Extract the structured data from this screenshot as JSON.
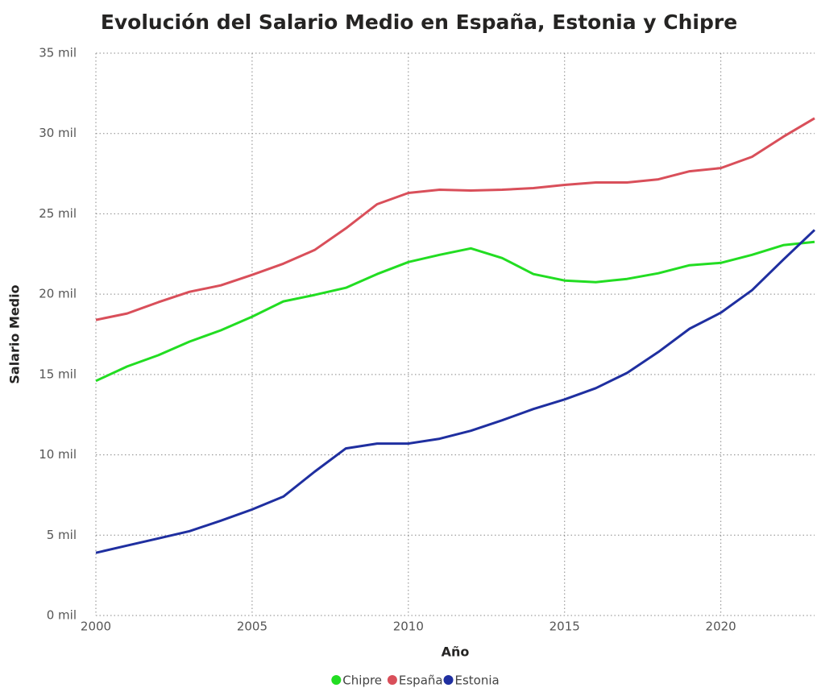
{
  "chart_data": {
    "type": "line",
    "title": "Evolución del Salario Medio en España, Estonia y Chipre",
    "x_label": "Año",
    "y_label": "Salario Medio",
    "x": [
      2000,
      2001,
      2002,
      2003,
      2004,
      2005,
      2006,
      2007,
      2008,
      2009,
      2010,
      2011,
      2012,
      2013,
      2014,
      2015,
      2016,
      2017,
      2018,
      2019,
      2020,
      2021,
      2022,
      2023
    ],
    "series": [
      {
        "name": "Chipre",
        "color": "#22dd22",
        "values": [
          14600,
          15500,
          16200,
          17050,
          17750,
          18600,
          19550,
          19950,
          20400,
          21250,
          22000,
          22450,
          22850,
          22250,
          21250,
          20850,
          20750,
          20950,
          21300,
          21800,
          21950,
          22450,
          23050,
          23250
        ]
      },
      {
        "name": "España",
        "color": "#d94f5a",
        "values": [
          18400,
          18800,
          19500,
          20150,
          20550,
          21200,
          21900,
          22750,
          24100,
          25600,
          26300,
          26500,
          26450,
          26500,
          26600,
          26800,
          26950,
          26950,
          27150,
          27650,
          27850,
          28550,
          29800,
          30950
        ]
      },
      {
        "name": "Estonia",
        "color": "#1f2fa0",
        "values": [
          3900,
          4350,
          4800,
          5250,
          5900,
          6600,
          7400,
          8950,
          10400,
          10700,
          10700,
          11000,
          11500,
          12150,
          12850,
          13450,
          14150,
          15100,
          16400,
          17850,
          18850,
          20250,
          22150,
          24000
        ]
      }
    ],
    "xlim": [
      2000,
      2023
    ],
    "xticks": [
      2000,
      2005,
      2010,
      2015,
      2020
    ],
    "ylim": [
      0,
      35000
    ],
    "yticks": [
      {
        "value": 0,
        "label": "0 mil"
      },
      {
        "value": 5000,
        "label": "5 mil"
      },
      {
        "value": 10000,
        "label": "10 mil"
      },
      {
        "value": 15000,
        "label": "15 mil"
      },
      {
        "value": 20000,
        "label": "20 mil"
      },
      {
        "value": 25000,
        "label": "25 mil"
      },
      {
        "value": 30000,
        "label": "30 mil"
      },
      {
        "value": 35000,
        "label": "35 mil"
      }
    ],
    "grid": true,
    "legend": "bottom"
  }
}
